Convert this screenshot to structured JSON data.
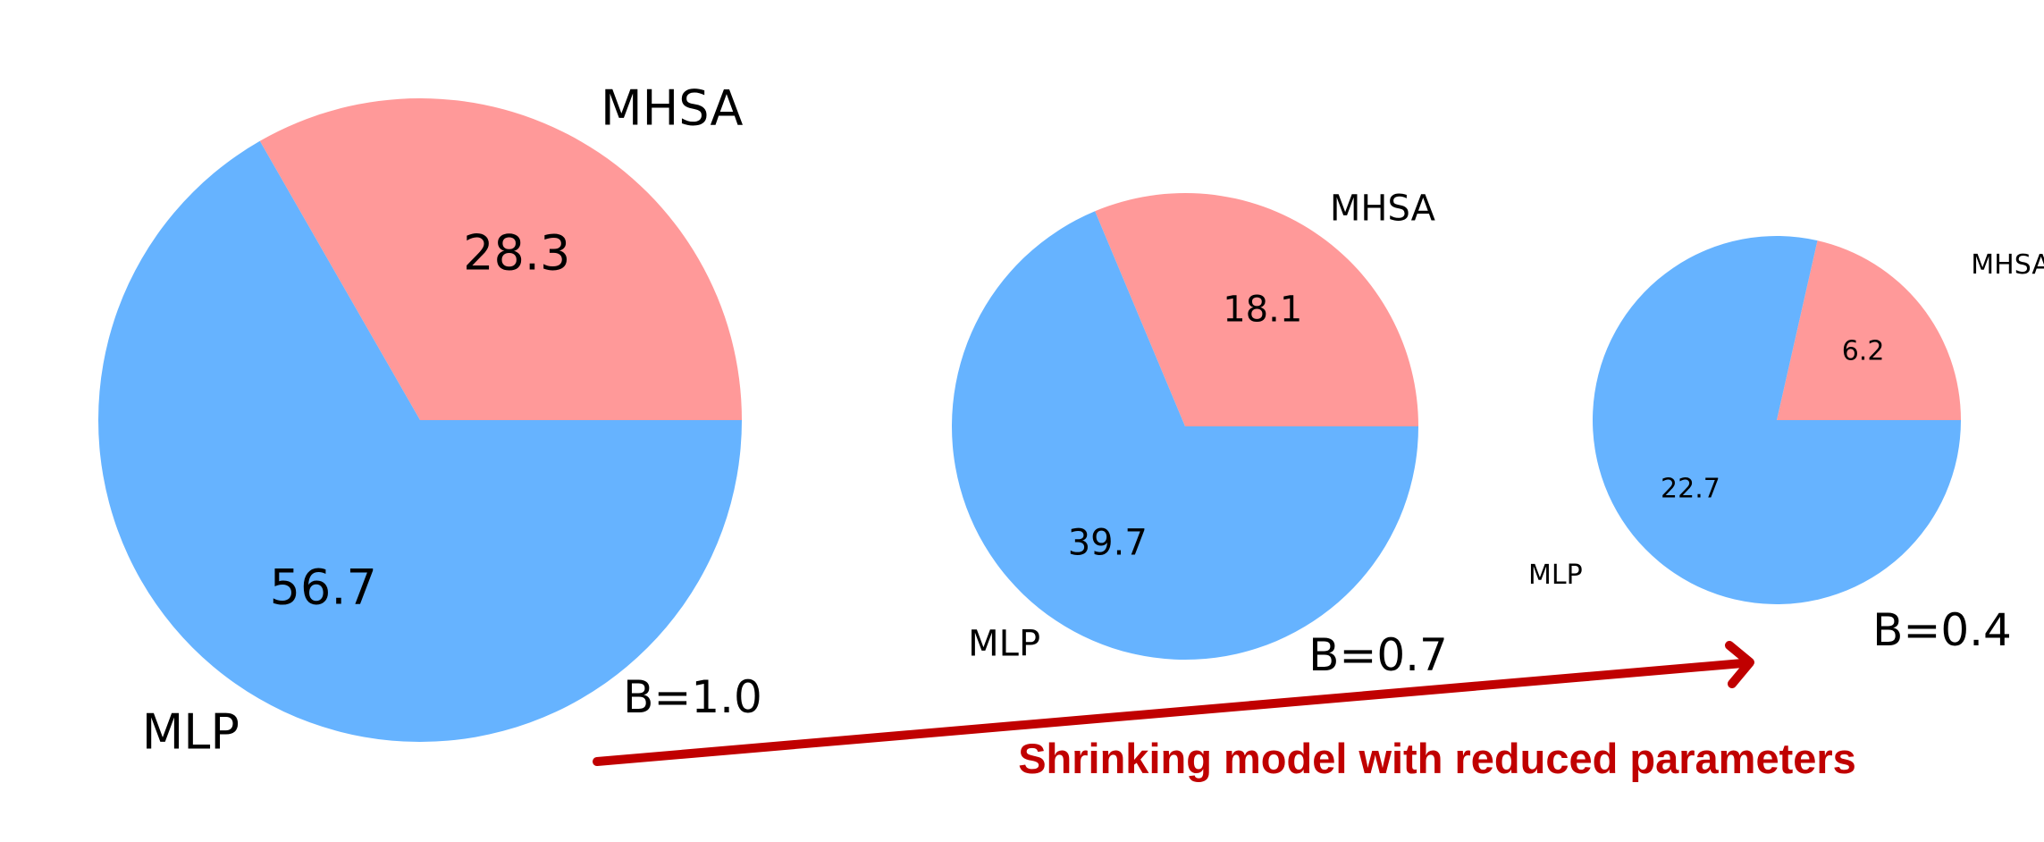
{
  "colors": {
    "MHSA": "#ff9999",
    "MLP": "#66b3ff",
    "arrow": "#c00000",
    "caption": "#c00000"
  },
  "chart_data": [
    {
      "type": "pie",
      "title": "",
      "annotation": "B=1.0",
      "labels": [
        "MHSA",
        "MLP"
      ],
      "values": [
        28.3,
        56.7
      ],
      "value_labels": [
        "28.3",
        "56.7"
      ],
      "colors": [
        "#ff9999",
        "#66b3ff"
      ],
      "start_angle_deg": 0,
      "direction": "counterclockwise"
    },
    {
      "type": "pie",
      "title": "",
      "annotation": "B=0.7",
      "labels": [
        "MHSA",
        "MLP"
      ],
      "values": [
        18.1,
        39.7
      ],
      "value_labels": [
        "18.1",
        "39.7"
      ],
      "colors": [
        "#ff9999",
        "#66b3ff"
      ],
      "start_angle_deg": 0,
      "direction": "counterclockwise"
    },
    {
      "type": "pie",
      "title": "",
      "annotation": "B=0.4",
      "labels": [
        "MHSA",
        "MLP"
      ],
      "values": [
        6.2,
        22.7
      ],
      "value_labels": [
        "6.2",
        "22.7"
      ],
      "colors": [
        "#ff9999",
        "#66b3ff"
      ],
      "start_angle_deg": 0,
      "direction": "counterclockwise"
    }
  ],
  "caption": "Shrinking model with reduced parameters"
}
